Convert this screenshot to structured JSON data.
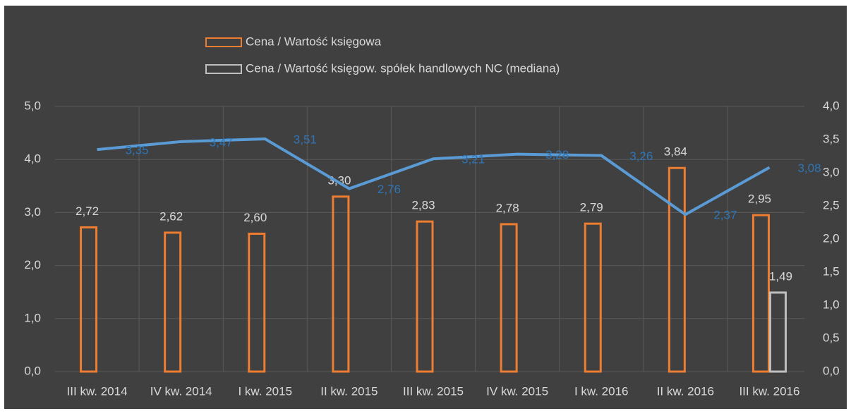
{
  "chart_data": {
    "type": "bar",
    "categories": [
      "III kw. 2014",
      "IV kw. 2014",
      "I kw. 2015",
      "II kw. 2015",
      "III kw. 2015",
      "IV kw. 2015",
      "I kw. 2016",
      "II kw. 2016",
      "III kw. 2016"
    ],
    "series": [
      {
        "name": "Cena / Wartość księgowa",
        "color": "#ed7d31",
        "type": "bar",
        "values": [
          2.72,
          2.62,
          2.6,
          3.3,
          2.83,
          2.78,
          2.79,
          3.84,
          2.95
        ],
        "value_labels": [
          "2,72",
          "2,62",
          "2,60",
          "3,30",
          "2,83",
          "2,78",
          "2,79",
          "3,84",
          "2,95"
        ]
      },
      {
        "name": "Cena / Wartość księgow. spółek handlowych NC (mediana)",
        "color": "#bfbfbf",
        "type": "bar",
        "values": [
          null,
          null,
          null,
          null,
          null,
          null,
          null,
          null,
          1.49
        ],
        "value_labels": [
          null,
          null,
          null,
          null,
          null,
          null,
          null,
          null,
          "1,49"
        ]
      },
      {
        "color": "#5b9bd5",
        "type": "line",
        "axis": "y2",
        "values": [
          3.35,
          3.47,
          3.51,
          2.76,
          3.21,
          3.28,
          3.26,
          2.37,
          3.08
        ],
        "value_labels": [
          "3,35",
          "3,47",
          "3,51",
          "2,76",
          "3,21",
          "3,28",
          "3,26",
          "2,37",
          "3,08"
        ]
      }
    ],
    "ylim": [
      0,
      5
    ],
    "yticks": [
      {
        "value": 0,
        "label": "0,0"
      },
      {
        "value": 1,
        "label": "1,0"
      },
      {
        "value": 2,
        "label": "2,0"
      },
      {
        "value": 3,
        "label": "3,0"
      },
      {
        "value": 4,
        "label": "4,0"
      },
      {
        "value": 5,
        "label": "5,0"
      }
    ],
    "y2lim": [
      0,
      4
    ],
    "y2ticks": [
      {
        "value": 0,
        "label": "0,0"
      },
      {
        "value": 0.5,
        "label": "0,5"
      },
      {
        "value": 1,
        "label": "1,0"
      },
      {
        "value": 1.5,
        "label": "1,5"
      },
      {
        "value": 2,
        "label": "2,0"
      },
      {
        "value": 2.5,
        "label": "2,5"
      },
      {
        "value": 3,
        "label": "3,0"
      },
      {
        "value": 3.5,
        "label": "3,5"
      },
      {
        "value": 4,
        "label": "4,0"
      }
    ],
    "grid": true,
    "legend": "top"
  }
}
